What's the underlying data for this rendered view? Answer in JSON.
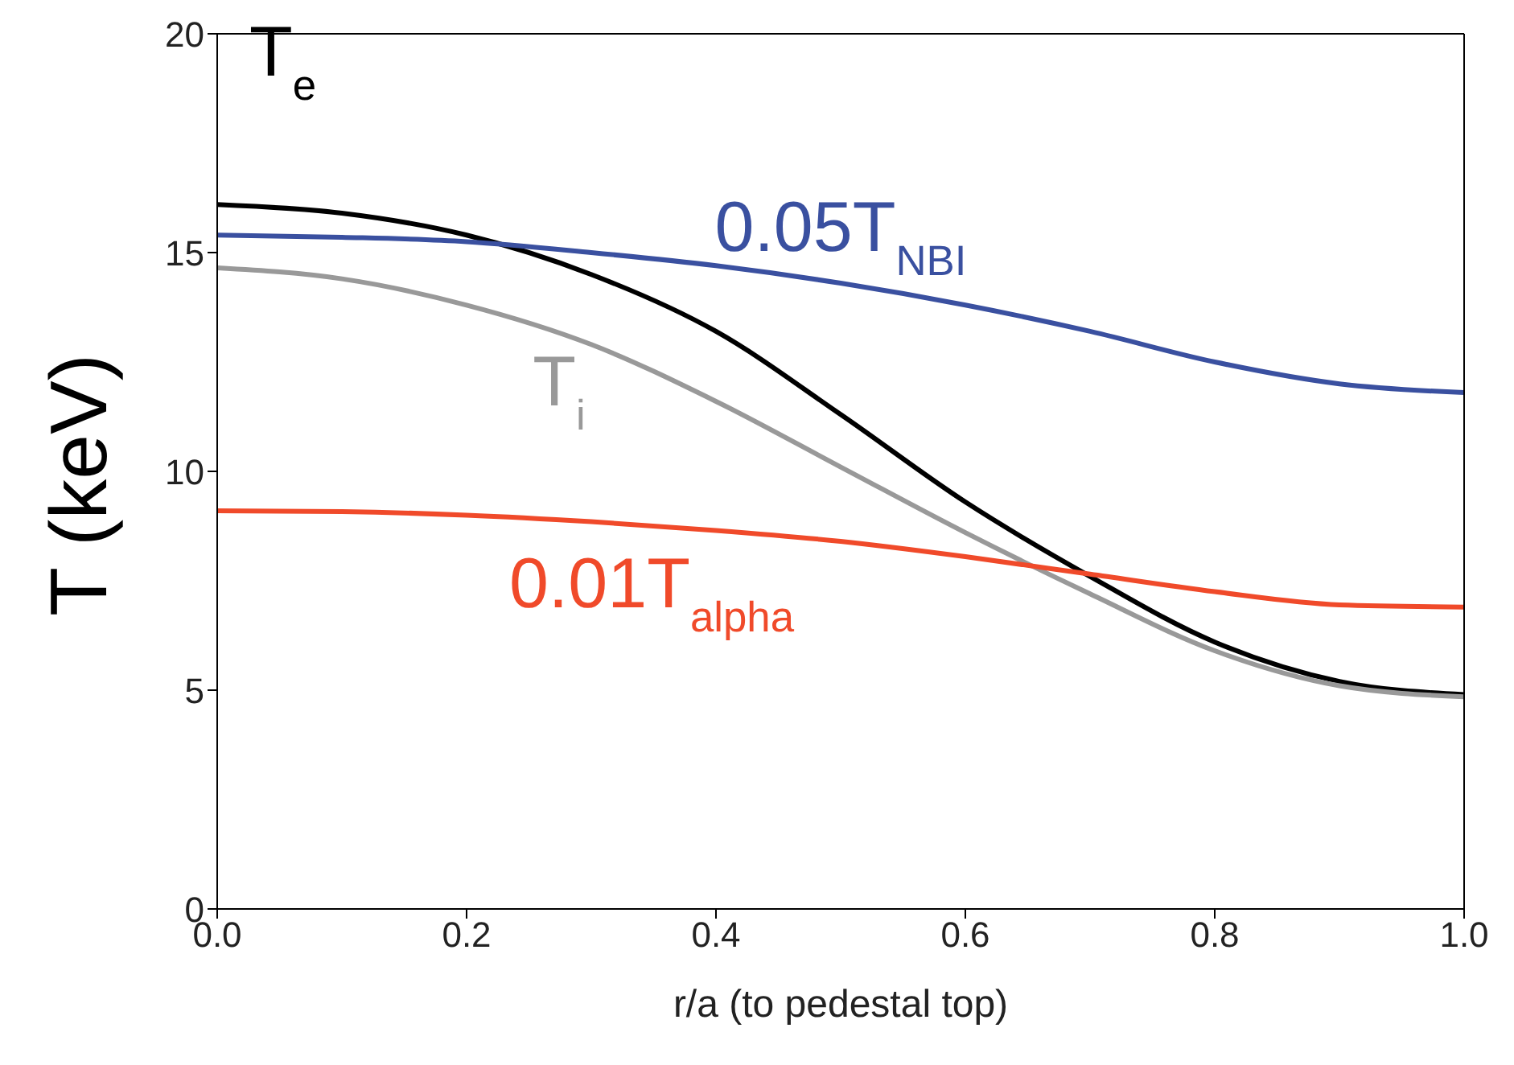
{
  "chart_data": {
    "type": "line",
    "xlabel": "r/a (to pedestal top)",
    "ylabel": "T (keV)",
    "x": [
      0,
      0.1,
      0.2,
      0.3,
      0.4,
      0.5,
      0.6,
      0.7,
      0.8,
      0.9,
      1.0
    ],
    "series": [
      {
        "name": "T$_{e}$",
        "color": "#000000",
        "values": [
          16.1,
          15.9,
          15.4,
          14.5,
          13.2,
          11.3,
          9.3,
          7.6,
          6.1,
          5.2,
          4.9
        ]
      },
      {
        "name": "T$_{i}$",
        "color": "#999999",
        "values": [
          14.65,
          14.4,
          13.8,
          12.9,
          11.6,
          10.1,
          8.6,
          7.2,
          5.9,
          5.1,
          4.85
        ]
      },
      {
        "name": "0.05T$_{NBI}$",
        "color": "#3a50a0",
        "values": [
          15.4,
          15.35,
          15.25,
          15.0,
          14.7,
          14.3,
          13.8,
          13.2,
          12.5,
          12.0,
          11.8
        ]
      },
      {
        "name": "0.01T$_{alpha}$",
        "color": "#f04a2a",
        "values": [
          9.1,
          9.08,
          9.0,
          8.85,
          8.65,
          8.4,
          8.05,
          7.65,
          7.25,
          6.95,
          6.9
        ]
      }
    ],
    "xlim": [
      0,
      1
    ],
    "xticks": [
      {
        "value": 0,
        "label": "0.0"
      },
      0.2,
      0.4,
      0.6,
      0.8,
      {
        "value": 1,
        "label": "1.0"
      }
    ],
    "ylim": [
      0,
      20
    ],
    "yticks": [
      0,
      5,
      10,
      15,
      20
    ],
    "grid": false,
    "legend": false,
    "marker": "none",
    "line_style": "solid"
  }
}
